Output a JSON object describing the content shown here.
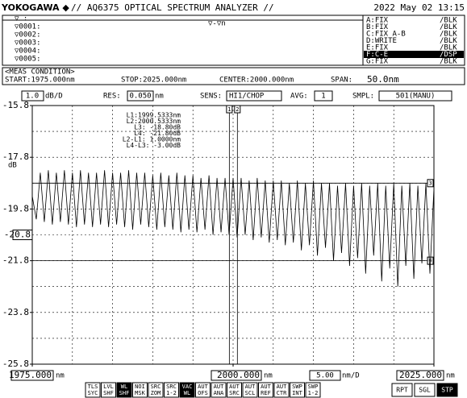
{
  "header": {
    "brand": "YOKOGAWA ◆",
    "model": "// AQ6375 OPTICAL SPECTRUM ANALYZER //",
    "datetime": "2022 May 02 13:15"
  },
  "marker_list": {
    "rows": [
      "▽    :",
      "▽0001:",
      "▽0002:",
      "▽0003:",
      "▽0004:",
      "▽0005:"
    ],
    "center": "▽-▽n"
  },
  "traces": [
    {
      "label": "A:FIX",
      "mode": "/BLK"
    },
    {
      "label": "B:FIX",
      "mode": "/BLK"
    },
    {
      "label": "C:FIX A-B",
      "mode": "/BLK"
    },
    {
      "label": "D:WRITE",
      "mode": "/BLK"
    },
    {
      "label": "E:FIX",
      "mode": "/BLK"
    },
    {
      "label": "F:C-E",
      "mode": "/DSP",
      "highlight": true
    },
    {
      "label": "G:FIX",
      "mode": "/BLK"
    }
  ],
  "meas_condition": {
    "title": "<MEAS CONDITION>",
    "start": "START:1975.000nm",
    "stop": "STOP:2025.000nm",
    "center": "CENTER:2000.000nm",
    "span_label": "SPAN:",
    "span": "50.0nm"
  },
  "settings": {
    "scale": "1.0",
    "scale_unit": "dB/D",
    "res_label": "RES:",
    "res": "0.050",
    "res_unit": "nm",
    "sens_label": "SENS:",
    "sens": "HI1/CHOP",
    "avg_label": "AVG:",
    "avg": "1",
    "smpl_label": "SMPL:",
    "smpl": "501(MANU)"
  },
  "chart_data": {
    "type": "line",
    "color": "#000000",
    "x": [
      1975,
      1975.5,
      1976,
      1976.5,
      1977,
      1977.5,
      1978,
      1978.5,
      1979,
      1979.5,
      1980,
      1980.5,
      1981,
      1981.5,
      1982,
      1982.5,
      1983,
      1983.5,
      1984,
      1984.5,
      1985,
      1985.5,
      1986,
      1986.5,
      1987,
      1987.5,
      1988,
      1988.5,
      1989,
      1989.5,
      1990,
      1990.5,
      1991,
      1991.5,
      1992,
      1992.5,
      1993,
      1993.5,
      1994,
      1994.5,
      1995,
      1995.5,
      1996,
      1996.5,
      1997,
      1997.5,
      1998,
      1998.5,
      1999,
      1999.5,
      2000,
      2000.5,
      2001,
      2001.5,
      2002,
      2002.5,
      2003,
      2003.5,
      2004,
      2004.5,
      2005,
      2005.5,
      2006,
      2006.5,
      2007,
      2007.5,
      2008,
      2008.5,
      2009,
      2009.5,
      2010,
      2010.5,
      2011,
      2011.5,
      2012,
      2012.5,
      2013,
      2013.5,
      2014,
      2014.5,
      2015,
      2015.5,
      2016,
      2016.5,
      2017,
      2017.5,
      2018,
      2018.5,
      2019,
      2019.5,
      2020,
      2020.5,
      2021,
      2021.5,
      2022,
      2022.5,
      2023,
      2023.5,
      2024,
      2024.5,
      2025
    ],
    "values": [
      -19.3,
      -20.2,
      -18.4,
      -20.3,
      -18.3,
      -20.4,
      -18.4,
      -20.3,
      -18.3,
      -20.4,
      -18.4,
      -20.5,
      -18.3,
      -20.4,
      -18.4,
      -20.5,
      -18.4,
      -20.4,
      -18.3,
      -20.5,
      -18.4,
      -20.4,
      -18.4,
      -20.5,
      -18.3,
      -20.6,
      -18.4,
      -20.4,
      -18.4,
      -20.5,
      -18.5,
      -20.6,
      -18.4,
      -20.5,
      -18.5,
      -20.6,
      -18.4,
      -20.7,
      -18.5,
      -20.6,
      -18.5,
      -20.7,
      -18.6,
      -20.6,
      -18.5,
      -20.8,
      -18.6,
      -20.7,
      -18.6,
      -20.8,
      -18.6,
      -20.9,
      -18.6,
      -20.8,
      -18.7,
      -21.0,
      -18.6,
      -20.9,
      -18.7,
      -21.1,
      -18.7,
      -21.0,
      -18.7,
      -21.2,
      -18.8,
      -21.1,
      -18.7,
      -21.4,
      -18.8,
      -21.2,
      -18.7,
      -21.6,
      -18.8,
      -21.3,
      -18.8,
      -21.8,
      -18.9,
      -21.5,
      -18.8,
      -22.0,
      -18.9,
      -21.7,
      -18.8,
      -22.3,
      -18.9,
      -21.6,
      -18.8,
      -22.6,
      -18.9,
      -22.1,
      -18.8,
      -22.8,
      -18.9,
      -22.0,
      -18.8,
      -22.5,
      -18.9,
      -21.9,
      -18.8,
      -22.3,
      -19.0
    ],
    "xlim": [
      1975,
      2025
    ],
    "ylim": [
      -25.8,
      -15.8
    ],
    "yticks": [
      -15.8,
      -17.8,
      -19.8,
      -21.8,
      -23.8,
      -25.8
    ],
    "y_label": "dB",
    "ygrid_step": 1,
    "xgrid_step": 5,
    "grid": true,
    "ref_level": {
      "value": -20.8,
      "label": "-20.8"
    },
    "xticks": [
      {
        "value": 1975,
        "label": "1975.000"
      },
      {
        "value": 2000,
        "label": "2000.000"
      },
      {
        "value": 2025,
        "label": "2025.000"
      }
    ],
    "x_unit": "nm",
    "x_scale": "5.00",
    "x_scale_unit": "nm/D",
    "markers_v": [
      {
        "name": "1",
        "value": 1999.5333
      },
      {
        "name": "2",
        "value": 2000.5333
      }
    ],
    "markers_h": [
      {
        "name": "3",
        "value": -18.8
      },
      {
        "name": "4",
        "value": -21.8
      }
    ],
    "readout": [
      "L1:1999.5333nm",
      "L2:2000.5333nm",
      "L3: -18.80dB",
      "L4: -21.80dB",
      "L2-L1:   1.0000nm",
      "L4-L3:   -3.00dB"
    ]
  },
  "buttons": [
    {
      "top": "TLS",
      "bottom": "SYC"
    },
    {
      "top": "LVL",
      "bottom": "SHF"
    },
    {
      "top": "WL",
      "bottom": "SHF",
      "highlight": true
    },
    {
      "top": "NOI",
      "bottom": "MSK"
    },
    {
      "top": "SRC",
      "bottom": "ZOM"
    },
    {
      "top": "SRC",
      "bottom": "1-2"
    },
    {
      "top": "VAC",
      "bottom": "WL",
      "highlight": true
    },
    {
      "top": "AUT",
      "bottom": "OFS"
    },
    {
      "top": "AUT",
      "bottom": "ANA"
    },
    {
      "top": "AUT",
      "bottom": "SRC"
    },
    {
      "top": "AUT",
      "bottom": "SCL"
    },
    {
      "top": "AUT",
      "bottom": "REF"
    },
    {
      "top": "AUT",
      "bottom": "CTR"
    },
    {
      "top": "SWP",
      "bottom": "INT"
    },
    {
      "top": "SWP",
      "bottom": "1-2"
    }
  ],
  "actions": [
    {
      "label": "RPT"
    },
    {
      "label": "SGL"
    },
    {
      "label": "STP",
      "highlight": true
    }
  ]
}
